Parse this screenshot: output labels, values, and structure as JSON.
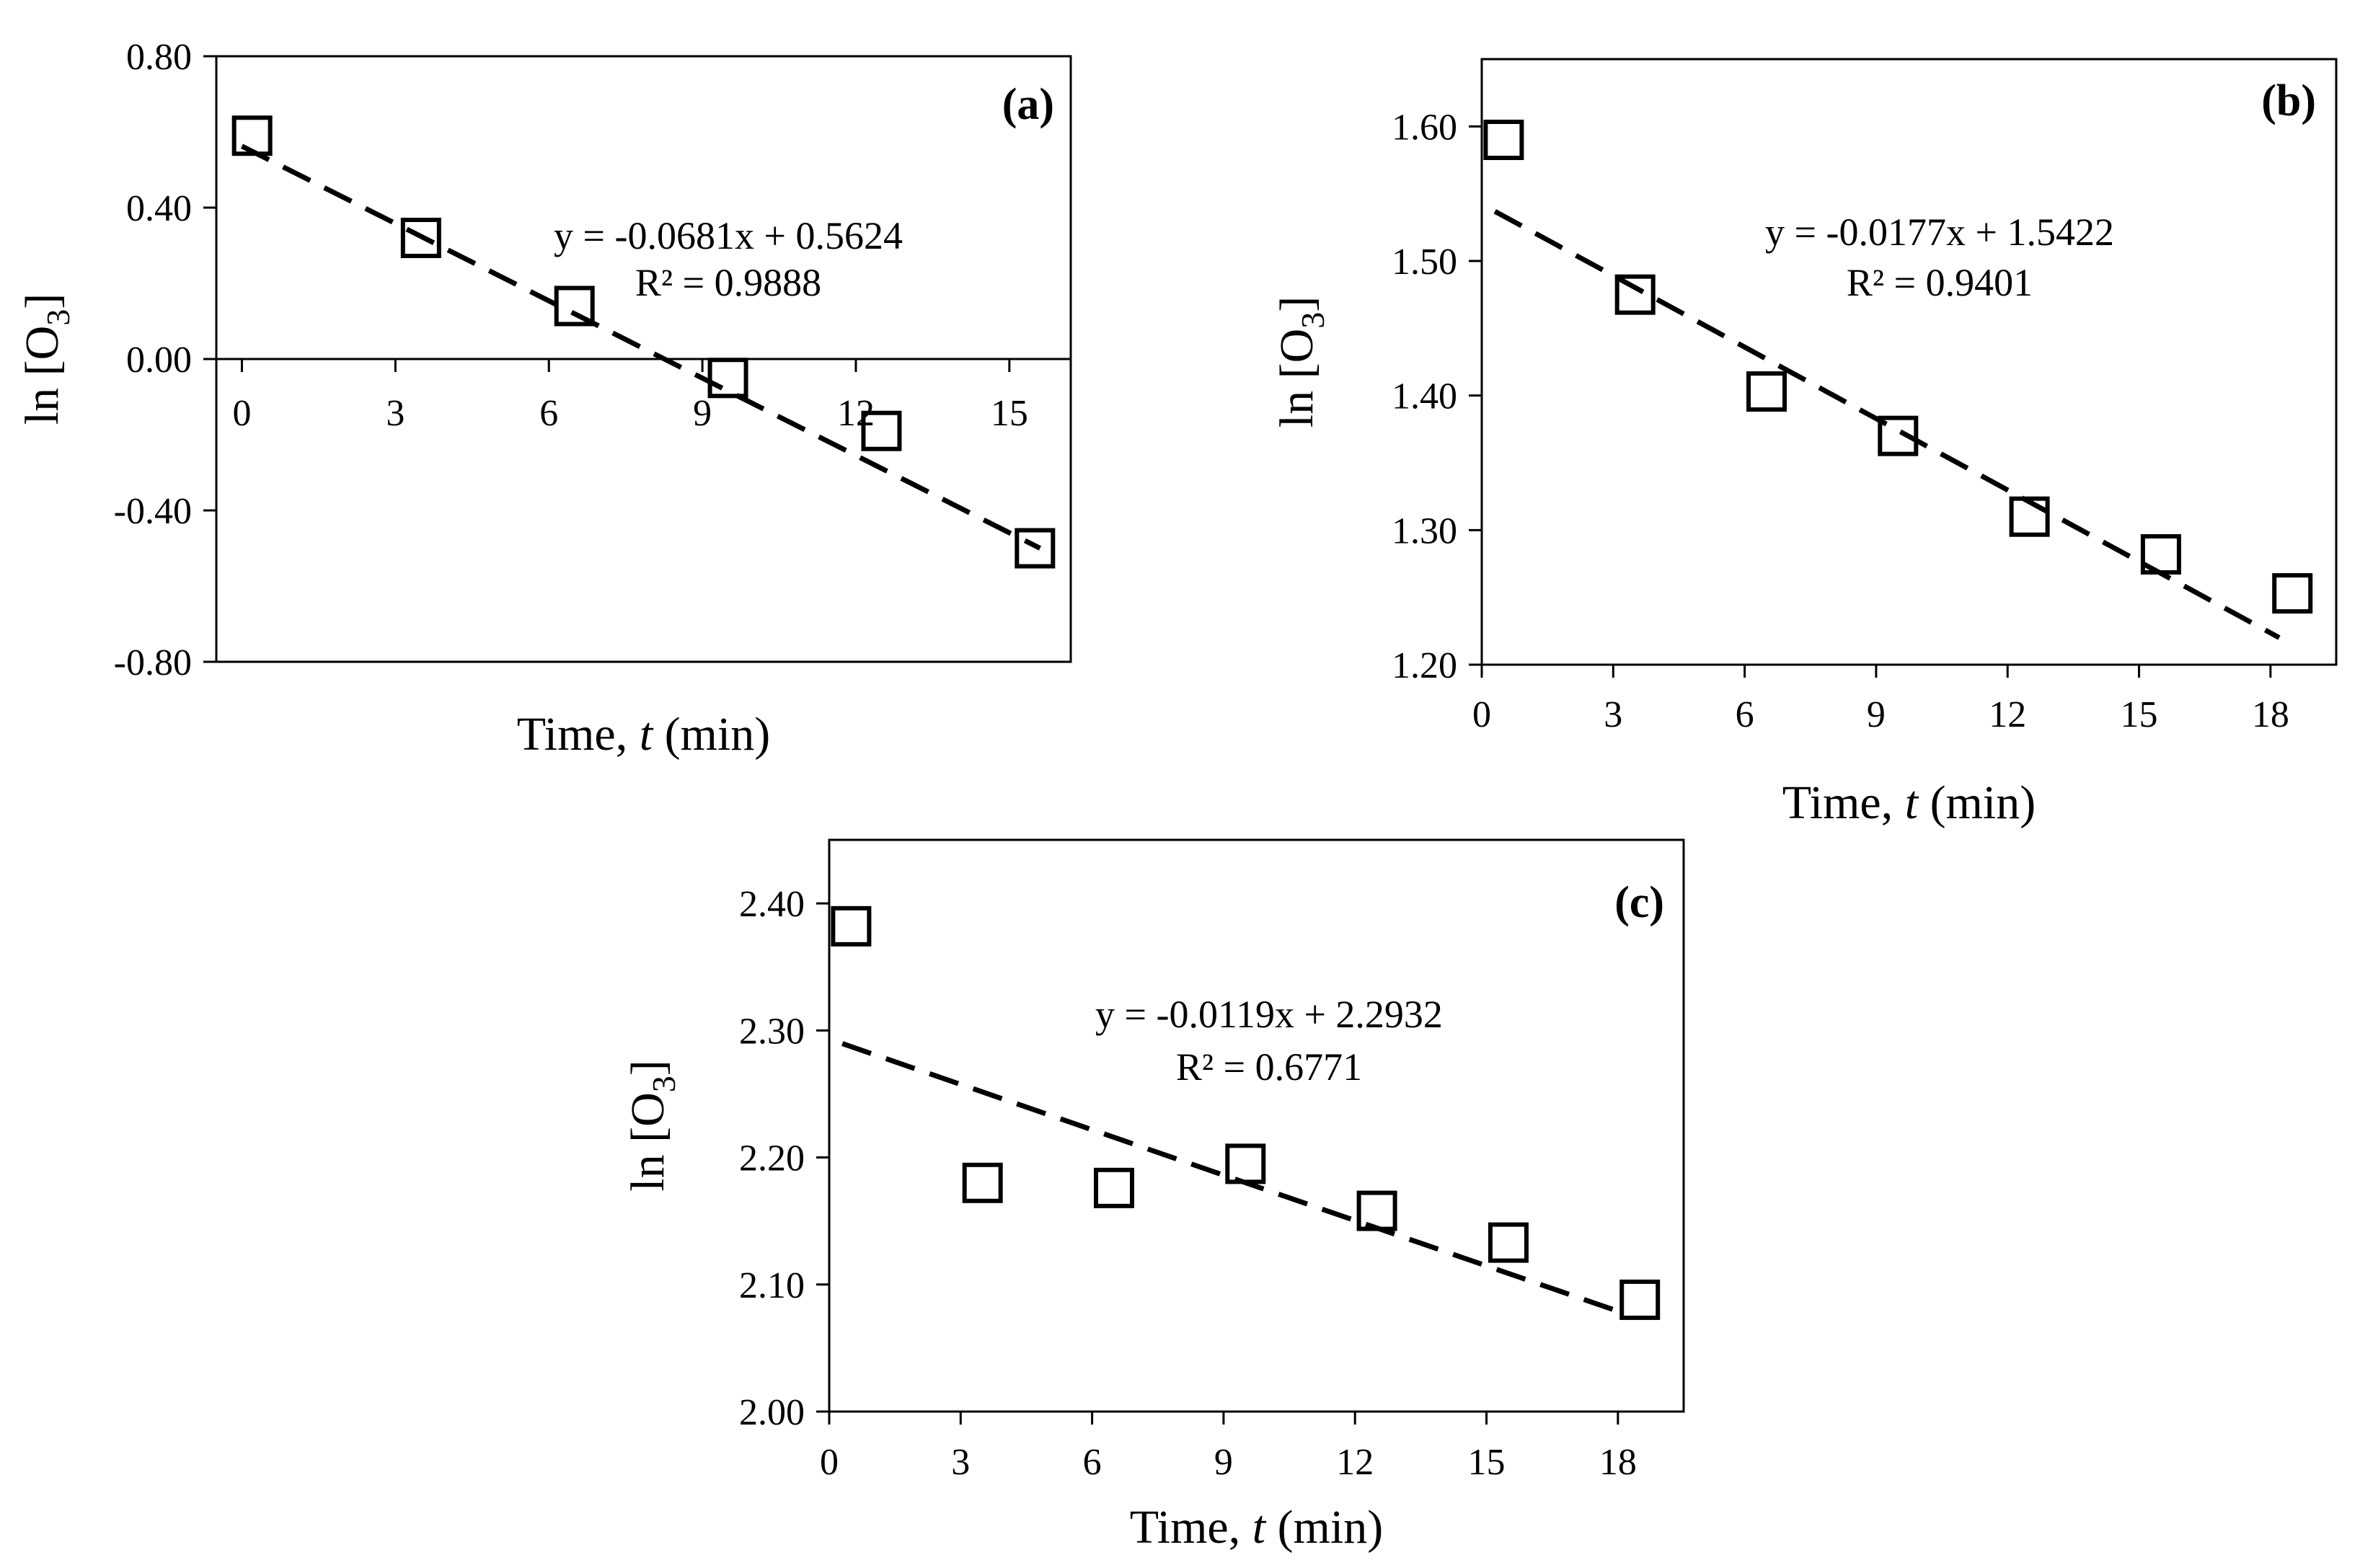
{
  "colors": {
    "ink": "#000000",
    "background": "#ffffff"
  },
  "chart_data": [
    {
      "type": "scatter",
      "panel_label": "(a)",
      "xlabel_prefix": "Time, ",
      "xlabel_var": "t",
      "xlabel_suffix": " (min)",
      "ylabel_prefix": "ln [O",
      "ylabel_sub": "3",
      "ylabel_suffix": "]",
      "xlim": [
        -0.5,
        16.2
      ],
      "ylim": [
        -0.8,
        0.8
      ],
      "x_ticks": [
        0,
        3,
        6,
        9,
        12,
        15
      ],
      "x_tick_labels": [
        "0",
        "3",
        "6",
        "9",
        "12",
        "15"
      ],
      "y_ticks": [
        -0.8,
        -0.4,
        0.0,
        0.4,
        0.8
      ],
      "y_tick_labels": [
        "-0.80",
        "-0.40",
        "0.00",
        "0.40",
        "0.80"
      ],
      "x_axis_at_zero": true,
      "points": {
        "x": [
          0.2,
          3.5,
          6.5,
          9.5,
          12.5,
          15.5
        ],
        "y": [
          0.59,
          0.32,
          0.14,
          -0.05,
          -0.19,
          -0.5
        ]
      },
      "trendline": {
        "slope": -0.0681,
        "intercept": 0.5624,
        "x_range": [
          0.0,
          15.6
        ],
        "style": "dashed"
      },
      "equation": "y = -0.0681x + 0.5624",
      "r2": "R² = 0.9888"
    },
    {
      "type": "scatter",
      "panel_label": "(b)",
      "xlabel_prefix": "Time, ",
      "xlabel_var": "t",
      "xlabel_suffix": " (min)",
      "ylabel_prefix": "ln [O",
      "ylabel_sub": "3",
      "ylabel_suffix": "]",
      "xlim": [
        0,
        19.5
      ],
      "ylim": [
        1.2,
        1.65
      ],
      "x_ticks": [
        0,
        3,
        6,
        9,
        12,
        15,
        18
      ],
      "x_tick_labels": [
        "0",
        "3",
        "6",
        "9",
        "12",
        "15",
        "18"
      ],
      "y_ticks": [
        1.2,
        1.3,
        1.4,
        1.5,
        1.6
      ],
      "y_tick_labels": [
        "1.20",
        "1.30",
        "1.40",
        "1.50",
        "1.60"
      ],
      "x_axis_at_zero": false,
      "points": {
        "x": [
          0.5,
          3.5,
          6.5,
          9.5,
          12.5,
          15.5,
          18.5
        ],
        "y": [
          1.59,
          1.475,
          1.403,
          1.37,
          1.31,
          1.282,
          1.253
        ]
      },
      "trendline": {
        "slope": -0.0177,
        "intercept": 1.5422,
        "x_range": [
          0.3,
          18.2
        ],
        "style": "dashed"
      },
      "equation": "y = -0.0177x + 1.5422",
      "r2": "R² = 0.9401"
    },
    {
      "type": "scatter",
      "panel_label": "(c)",
      "xlabel_prefix": "Time, ",
      "xlabel_var": "t",
      "xlabel_suffix": " (min)",
      "ylabel_prefix": "ln [O",
      "ylabel_sub": "3",
      "ylabel_suffix": "]",
      "xlim": [
        0,
        19.5
      ],
      "ylim": [
        2.0,
        2.45
      ],
      "x_ticks": [
        0,
        3,
        6,
        9,
        12,
        15,
        18
      ],
      "x_tick_labels": [
        "0",
        "3",
        "6",
        "9",
        "12",
        "15",
        "18"
      ],
      "y_ticks": [
        2.0,
        2.1,
        2.2,
        2.3,
        2.4
      ],
      "y_tick_labels": [
        "2.00",
        "2.10",
        "2.20",
        "2.30",
        "2.40"
      ],
      "x_axis_at_zero": false,
      "points": {
        "x": [
          0.5,
          3.5,
          6.5,
          9.5,
          12.5,
          15.5,
          18.5
        ],
        "y": [
          2.382,
          2.18,
          2.176,
          2.195,
          2.158,
          2.133,
          2.088
        ]
      },
      "trendline": {
        "slope": -0.0119,
        "intercept": 2.2932,
        "x_range": [
          0.3,
          18.2
        ],
        "style": "dashed"
      },
      "equation": "y = -0.0119x + 2.2932",
      "r2": "R² = 0.6771"
    }
  ]
}
